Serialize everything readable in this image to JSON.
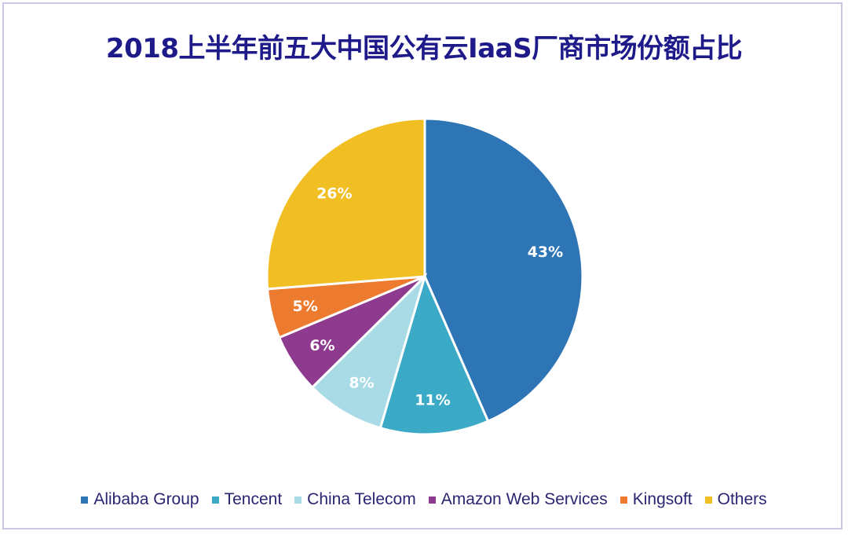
{
  "chart_data": {
    "type": "pie",
    "title": "2018上半年前五大中国公有云IaaS厂商市场份额占比",
    "categories": [
      "Alibaba Group",
      "Tencent",
      "China Telecom",
      "Amazon Web Services",
      "Kingsoft",
      "Others"
    ],
    "values": [
      43,
      11,
      8,
      6,
      5,
      26
    ],
    "labels": [
      "43%",
      "11%",
      "8%",
      "6%",
      "5%",
      "26%"
    ],
    "colors": [
      "#2e75b6",
      "#3aaac6",
      "#a8dbe5",
      "#8e3a8e",
      "#ec7a2f",
      "#f1be23"
    ],
    "start": "top",
    "direction": "clockwise",
    "legend_position": "bottom"
  }
}
